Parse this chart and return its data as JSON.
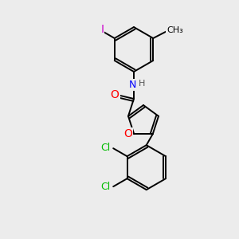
{
  "background_color": "#ececec",
  "bond_color": "#000000",
  "atom_colors": {
    "N": "#0000ff",
    "O": "#ff0000",
    "Cl": "#00bb00",
    "I": "#cc00cc",
    "C": "#000000",
    "H": "#555555"
  },
  "figsize": [
    3.0,
    3.0
  ],
  "dpi": 100
}
